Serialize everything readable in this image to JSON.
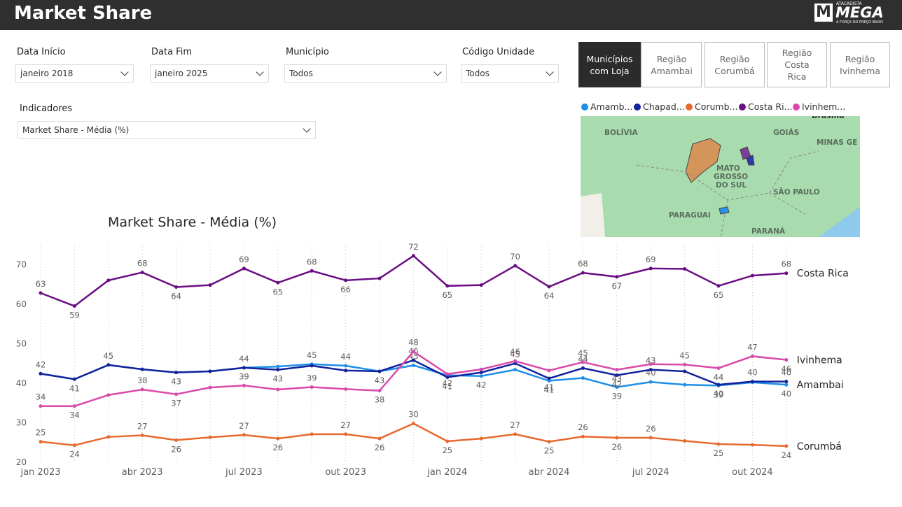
{
  "header": {
    "title": "Market Share",
    "logo": {
      "brand": "MEGA",
      "top": "ATACADISTA",
      "tagline": "A FORÇA DO PREÇO BAIXO"
    }
  },
  "filters": [
    {
      "label": "Data Início",
      "value": "janeiro 2018"
    },
    {
      "label": "Data Fim",
      "value": "janeiro 2025"
    },
    {
      "label": "Município",
      "value": "Todos"
    },
    {
      "label": "Código Unidade",
      "value": "Todos"
    }
  ],
  "indicator": {
    "label": "Indicadores",
    "value": "Market Share - Média (%)"
  },
  "buttons": [
    "Municípios com Loja",
    "Região Amambai",
    "Região Corumbá",
    "Região Costa Rica",
    "Região Ivinhema"
  ],
  "map": {
    "labels": [
      "BOLÍVIA",
      "MATO",
      "GROSSO",
      "DO SUL",
      "GOIÁS",
      "MINAS GE",
      "SÃO PAULO",
      "PARAGUAI",
      "PARANÁ",
      "Brasília"
    ]
  },
  "chart_data": {
    "type": "line",
    "title": "Market Share - Média (%)",
    "categories": [
      "jan 2023",
      null,
      null,
      "abr 2023",
      null,
      null,
      "jul 2023",
      null,
      null,
      "out 2023",
      null,
      null,
      "jan 2024",
      null,
      null,
      "abr 2024",
      null,
      null,
      "jul 2024",
      null,
      null,
      "out 2024",
      null
    ],
    "series": [
      {
        "name": "Amamb...",
        "end_label": "Amambai",
        "color": "#1e8fe8",
        "values": [
          42.4,
          41,
          44.6,
          43.5,
          42.7,
          43,
          43.9,
          44.2,
          44.8,
          44.4,
          43,
          44.5,
          42,
          41.8,
          43.4,
          40.6,
          41.3,
          39,
          40.3,
          39.6,
          39.4,
          40.2,
          39.6
        ],
        "value_labels": [
          null,
          null,
          null,
          null,
          null,
          null,
          null,
          null,
          "45",
          "44",
          null,
          "45",
          null,
          "42",
          null,
          "41",
          null,
          "39",
          "40",
          null,
          "39",
          null,
          "40"
        ]
      },
      {
        "name": "Chapad...",
        "color": "#13239c",
        "values": [
          42.4,
          41,
          44.6,
          43.5,
          42.7,
          43,
          43.9,
          43.4,
          44.4,
          43.2,
          43,
          45.8,
          41.5,
          42.7,
          45,
          41.2,
          43.8,
          42,
          43.4,
          43,
          39.6,
          40.4,
          40.4
        ],
        "value_labels": [
          "42",
          "41",
          "45",
          null,
          "43",
          null,
          "44",
          "43",
          null,
          null,
          "43",
          "46",
          "41",
          null,
          "45",
          "41",
          "44",
          "42",
          "43",
          null,
          "40",
          "40",
          "40"
        ]
      },
      {
        "name": "Corumb...",
        "end_label": "Corumbá",
        "color": "#e8692e",
        "values": [
          25.2,
          24.3,
          26.4,
          26.8,
          25.6,
          26.3,
          26.9,
          26,
          27.1,
          27.1,
          26,
          29.8,
          25.3,
          26,
          27.1,
          25.2,
          26.5,
          26.2,
          26.2,
          25.4,
          24.6,
          24.4,
          24.1
        ],
        "value_labels": [
          "25",
          "24",
          null,
          "27",
          "26",
          null,
          "27",
          "26",
          null,
          "27",
          "26",
          "30",
          "25",
          null,
          "27",
          "25",
          "26",
          "26",
          "26",
          null,
          "25",
          null,
          "24"
        ]
      },
      {
        "name": "Costa Ri...",
        "end_label": "Costa Rica",
        "color": "#6a0d83",
        "values": [
          62.8,
          59.5,
          66,
          68,
          64.3,
          64.8,
          69,
          65.4,
          68.4,
          66,
          66.5,
          72.2,
          64.6,
          64.8,
          69.7,
          64.4,
          67.9,
          66.9,
          69,
          68.9,
          64.6,
          67.2,
          67.8
        ],
        "value_labels": [
          "63",
          "59",
          null,
          "68",
          "64",
          null,
          "69",
          "65",
          "68",
          "66",
          null,
          "72",
          "65",
          null,
          "70",
          "64",
          "68",
          "67",
          "69",
          null,
          "65",
          null,
          "68"
        ]
      },
      {
        "name": "Ivinhem...",
        "end_label": "Ivinhema",
        "color": "#d94aab",
        "values": [
          34.2,
          34.2,
          37,
          38.4,
          37.2,
          38.9,
          39.4,
          38.4,
          39,
          38.5,
          38.1,
          48,
          42.3,
          43.5,
          45.6,
          43.2,
          45.3,
          43.4,
          44.8,
          44.7,
          43.8,
          46.8,
          45.9
        ],
        "value_labels": [
          "34",
          "34",
          null,
          "38",
          "37",
          null,
          "39",
          null,
          "39",
          null,
          "38",
          "48",
          "42",
          null,
          "46",
          null,
          "45",
          "43",
          null,
          "45",
          "44",
          "47",
          "46"
        ]
      }
    ],
    "ylim": [
      20,
      75
    ],
    "yticks": [
      20,
      30,
      40,
      50,
      60,
      70
    ],
    "grid": "x"
  }
}
